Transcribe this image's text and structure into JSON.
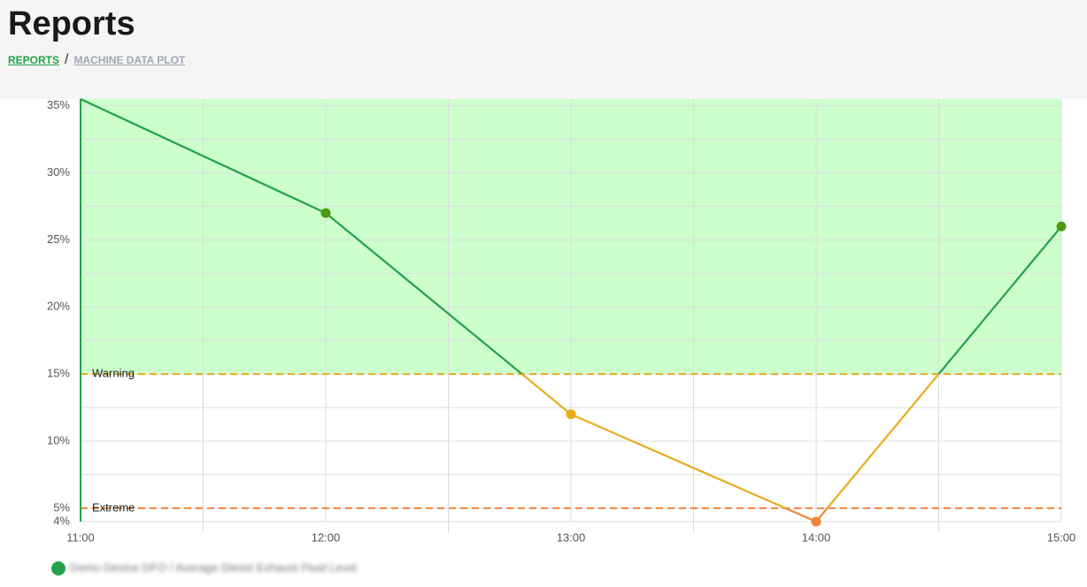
{
  "header": {
    "title": "Reports",
    "breadcrumb": [
      "REPORTS",
      "/",
      "MACHINE DATA PLOT"
    ]
  },
  "chart_data": {
    "type": "line",
    "x": [
      "11:00",
      "12:00",
      "13:00",
      "14:00",
      "15:00"
    ],
    "series": [
      {
        "name": "Demo Device DFO / Average Diesel Exhaust Fluid Level",
        "color": "#22a34a",
        "point_color": "#4f9a12",
        "values": [
          35.5,
          27,
          12,
          4,
          26
        ]
      }
    ],
    "ylim": [
      4,
      35.5
    ],
    "yticks": [
      {
        "value": 4,
        "label": "4%"
      },
      {
        "value": 5,
        "label": "5%"
      },
      {
        "value": 10,
        "label": "10%"
      },
      {
        "value": 15,
        "label": "15%"
      },
      {
        "value": 20,
        "label": "20%"
      },
      {
        "value": 25,
        "label": "25%"
      },
      {
        "value": 30,
        "label": "30%"
      },
      {
        "value": 35,
        "label": "35%"
      }
    ],
    "thresholds": [
      {
        "label": "Warning",
        "value": 15,
        "color": "#e8ad1c"
      },
      {
        "label": "Extreme",
        "value": 5,
        "color": "#f2843a"
      }
    ],
    "zone_color": "#ccffcc",
    "grid": true
  }
}
